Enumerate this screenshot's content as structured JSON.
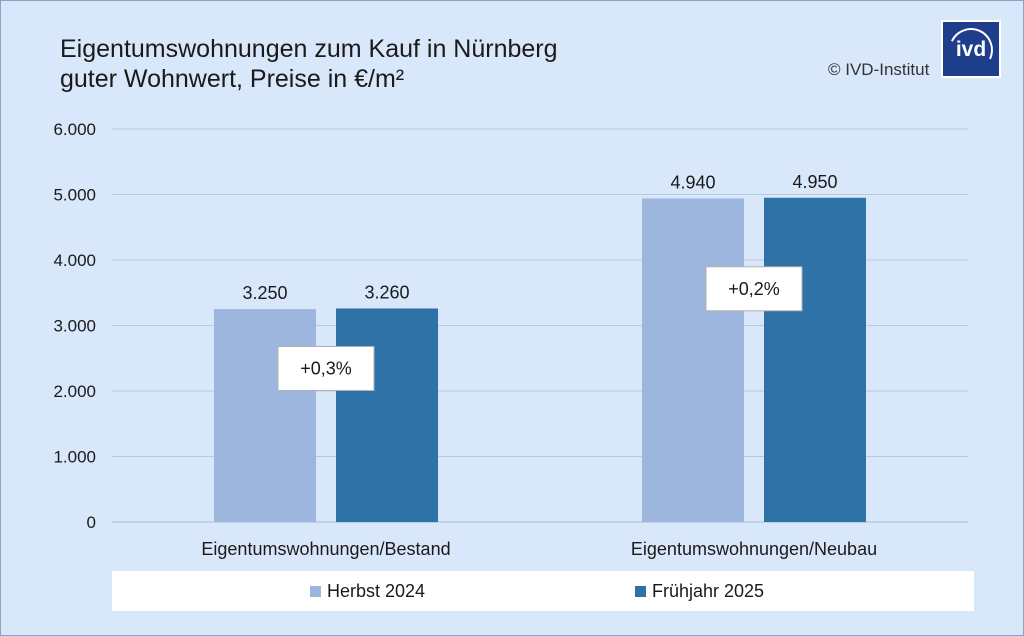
{
  "header": {
    "title_line1": "Eigentumswohnungen zum Kauf in Nürnberg",
    "title_line2": "guter Wohnwert, Preise in €/m²",
    "copyright": "© IVD-Institut",
    "logo_text": "ivd"
  },
  "colors": {
    "background": "#d9e7fb",
    "series1": "#9db6dd",
    "series2": "#2e72a8",
    "grid": "#b9c8dc"
  },
  "chart_data": {
    "type": "bar",
    "title": "Eigentumswohnungen zum Kauf in Nürnberg guter Wohnwert, Preise in €/m²",
    "categories": [
      "Eigentumswohnungen/Bestand",
      "Eigentumswohnungen/Neubau"
    ],
    "series": [
      {
        "name": "Herbst 2024",
        "values": [
          3250,
          4940
        ],
        "labels": [
          "3.250",
          "4.940"
        ]
      },
      {
        "name": "Frühjahr 2025",
        "values": [
          3260,
          4950
        ],
        "labels": [
          "3.260",
          "4.950"
        ]
      }
    ],
    "yticks": [
      0,
      1000,
      2000,
      3000,
      4000,
      5000,
      6000
    ],
    "ytick_labels": [
      "0",
      "1.000",
      "2.000",
      "3.000",
      "4.000",
      "5.000",
      "6.000"
    ],
    "ylim": [
      0,
      6000
    ],
    "annotations": [
      "+0,3%",
      "+0,2%"
    ],
    "legend_position": "bottom",
    "grid": true
  }
}
